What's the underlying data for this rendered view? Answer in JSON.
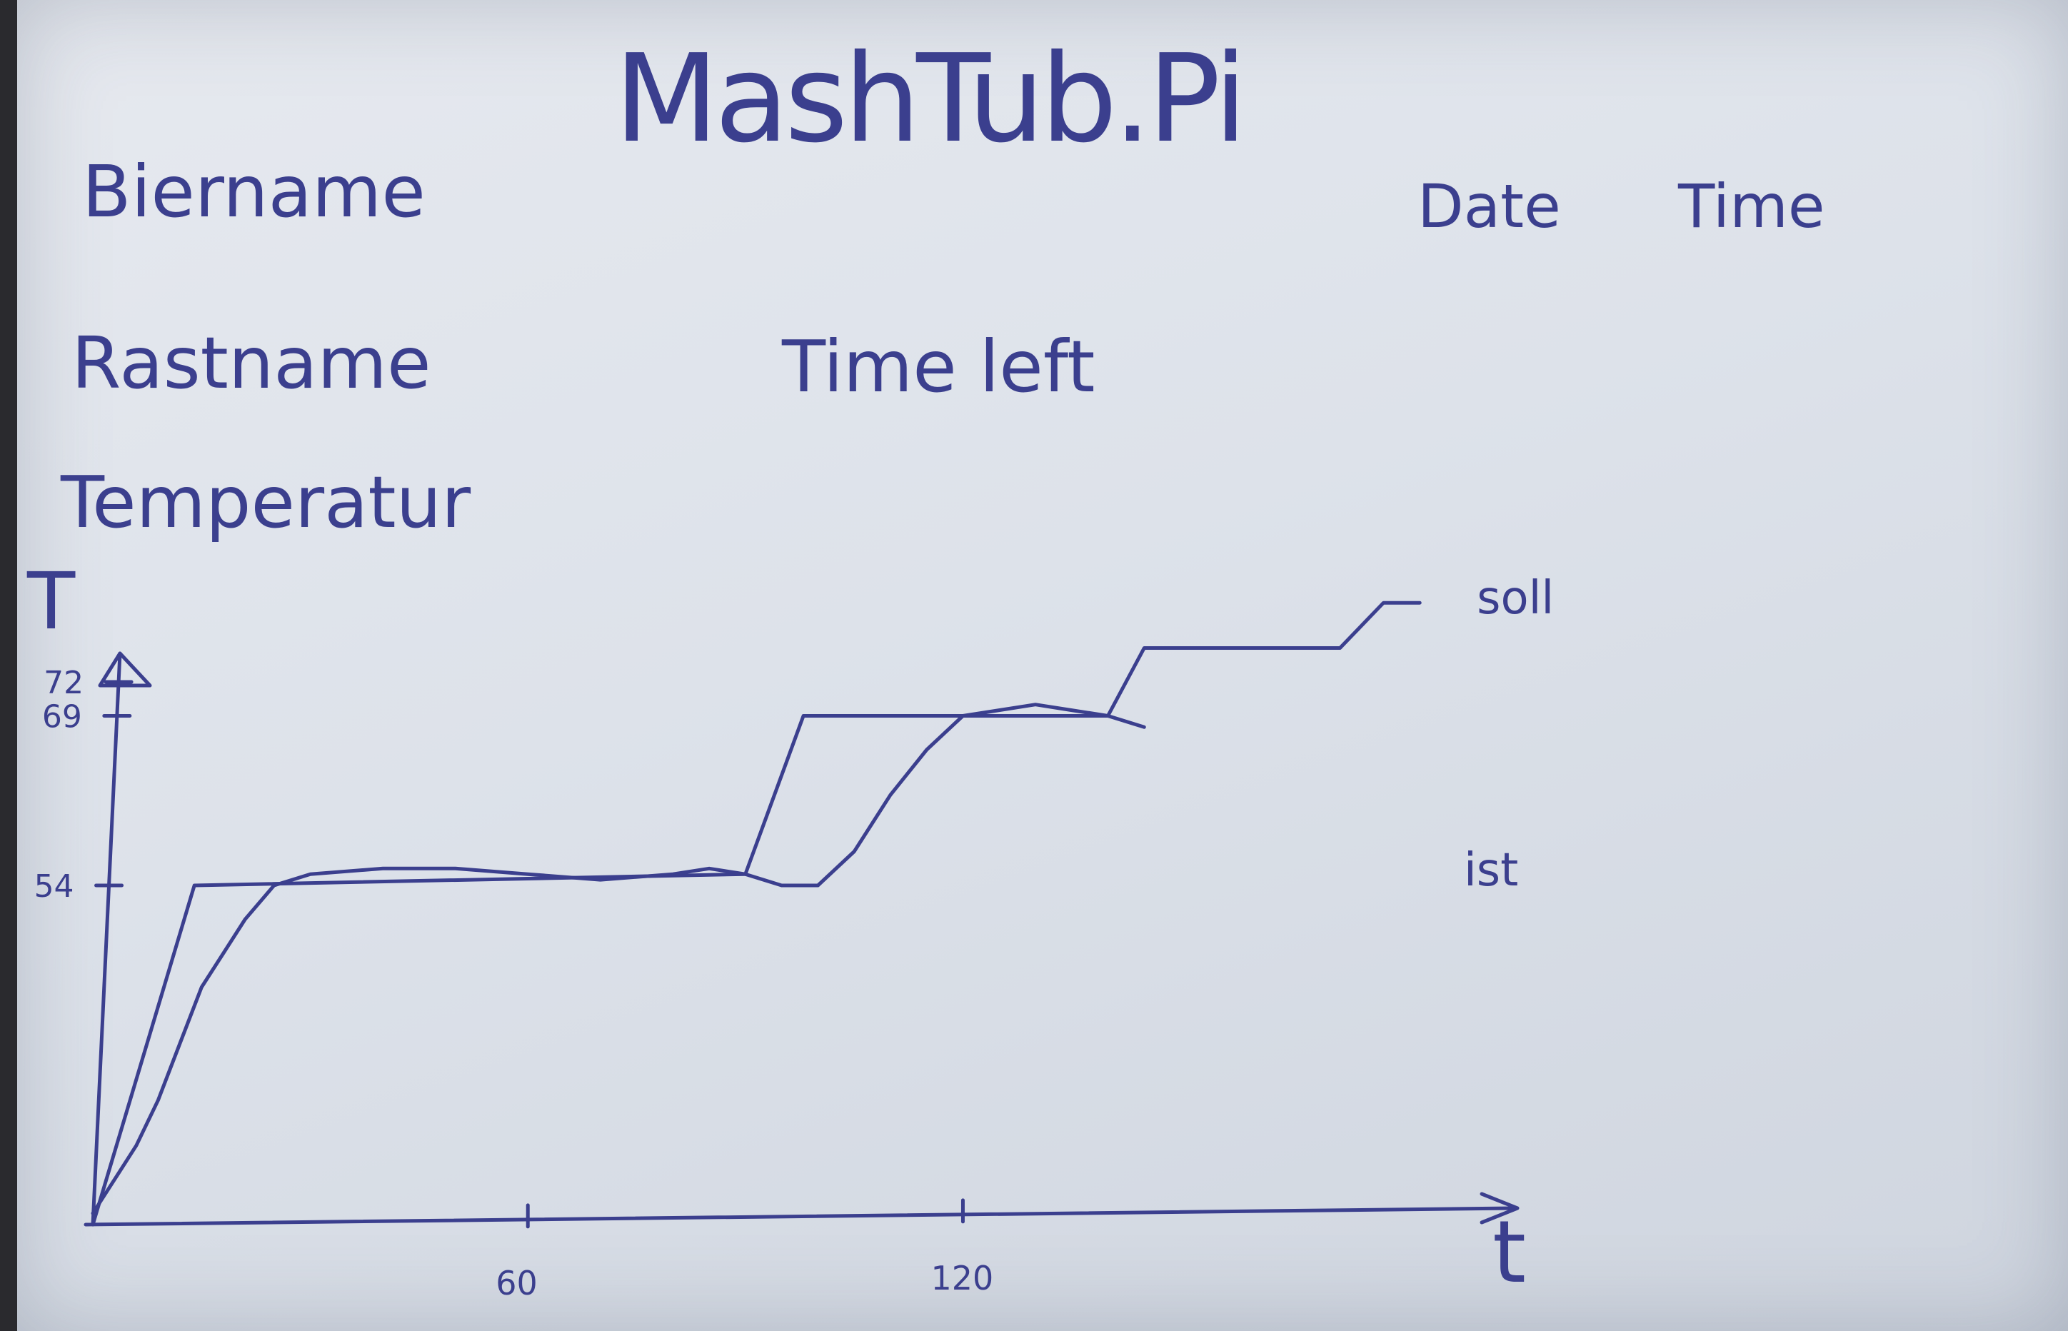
{
  "header": {
    "title": "MashTub.Pi",
    "biername": "Biername",
    "date": "Date",
    "time": "Time",
    "rastname": "Rastname",
    "time_left": "Time left",
    "temperatur": "Temperatur"
  },
  "chart_data": {
    "type": "line",
    "xlabel": "t",
    "ylabel": "T",
    "x_ticks": [
      "60",
      "120"
    ],
    "y_ticks": [
      "54",
      "69",
      "72"
    ],
    "xlim": [
      0,
      195
    ],
    "ylim": [
      24,
      78
    ],
    "series": [
      {
        "name": "soll",
        "x": [
          0,
          14,
          90,
          98,
          140,
          145,
          172,
          178,
          183
        ],
        "y": [
          24,
          54,
          55,
          69,
          69,
          75,
          75,
          79,
          79
        ]
      },
      {
        "name": "ist",
        "x": [
          0,
          3,
          6,
          9,
          12,
          15,
          18,
          21,
          25,
          30,
          40,
          50,
          60,
          70,
          80,
          85,
          90,
          95,
          100,
          105,
          110,
          115,
          120,
          125,
          130,
          135,
          140,
          145
        ],
        "y": [
          25,
          28,
          31,
          35,
          40,
          45,
          48,
          51,
          54,
          55,
          55.5,
          55.5,
          55,
          54.5,
          55,
          55.5,
          55,
          54,
          54,
          57,
          62,
          66,
          69,
          69.5,
          70,
          69.5,
          69,
          68
        ]
      }
    ]
  }
}
